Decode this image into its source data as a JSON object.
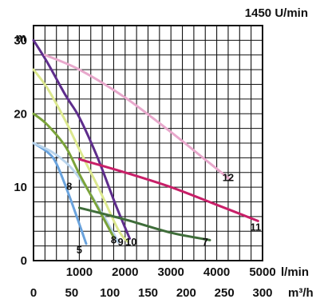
{
  "chart_data": {
    "type": "line",
    "speed_label": "1450 U/min",
    "y_unit": "m",
    "x_unit_top": "l/min",
    "x_unit_bottom": "m³/h",
    "ylim": [
      0,
      32
    ],
    "xlim_lmin": [
      0,
      5000
    ],
    "xlim_m3h": [
      0,
      300
    ],
    "y_ticks": [
      "0",
      "10",
      "20",
      "30"
    ],
    "x_ticks_top": [
      "1000",
      "2000",
      "3000",
      "4000",
      "5000"
    ],
    "x_ticks_bottom": [
      "0",
      "50",
      "100",
      "150",
      "200",
      "250",
      "300"
    ],
    "grid": true,
    "series": [
      {
        "name": "5",
        "color": "#6aa3dd",
        "points": [
          [
            0,
            16
          ],
          [
            300,
            14.8
          ],
          [
            500,
            13.2
          ],
          [
            800,
            8.5
          ],
          [
            1150,
            2.3
          ]
        ]
      },
      {
        "name": "9",
        "color": "#b9d4ec",
        "points": [
          [
            0,
            16
          ],
          [
            400,
            14.8
          ],
          [
            800,
            12.8
          ],
          [
            1200,
            9.5
          ],
          [
            1650,
            4.8
          ],
          [
            1850,
            2.5
          ]
        ]
      },
      {
        "name": "8",
        "color": "#7ba33a",
        "points": [
          [
            0,
            20
          ],
          [
            300,
            18.5
          ],
          [
            700,
            15.5
          ],
          [
            1000,
            11.8
          ],
          [
            1350,
            7.8
          ],
          [
            1750,
            3.2
          ]
        ]
      },
      {
        "name": "10",
        "color": "#dce88e",
        "points": [
          [
            0,
            26
          ],
          [
            300,
            23.5
          ],
          [
            700,
            19
          ],
          [
            1050,
            14.5
          ],
          [
            1450,
            9.5
          ],
          [
            1850,
            4.2
          ],
          [
            2050,
            2.6
          ]
        ]
      },
      {
        "name": "",
        "color": "#5e2d8c",
        "points": [
          [
            0,
            30
          ],
          [
            300,
            27
          ],
          [
            700,
            22.5
          ],
          [
            1000,
            19.5
          ],
          [
            1400,
            14
          ],
          [
            1800,
            7.5
          ],
          [
            2100,
            3
          ]
        ]
      },
      {
        "name": "12",
        "color": "#e8a8cc",
        "points": [
          [
            250,
            28
          ],
          [
            1000,
            26
          ],
          [
            2000,
            22.2
          ],
          [
            3000,
            17.5
          ],
          [
            3700,
            14
          ],
          [
            4300,
            11
          ]
        ]
      },
      {
        "name": "11",
        "color": "#c81f68",
        "points": [
          [
            1000,
            13.8
          ],
          [
            2000,
            12
          ],
          [
            3000,
            10
          ],
          [
            4000,
            7.6
          ],
          [
            4900,
            5.4
          ]
        ]
      },
      {
        "name": "7",
        "color": "#3f6d3a",
        "points": [
          [
            1000,
            7.2
          ],
          [
            2000,
            5.6
          ],
          [
            3000,
            3.8
          ],
          [
            3850,
            2.8
          ]
        ]
      }
    ],
    "labels": [
      {
        "text": "5",
        "x": 1000,
        "y": 1.5
      },
      {
        "text": "8",
        "x": 780,
        "y": 10.2
      },
      {
        "text": "8",
        "x": 1750,
        "y": 2.9
      },
      {
        "text": "9",
        "x": 1900,
        "y": 2.6
      },
      {
        "text": "10",
        "x": 2130,
        "y": 2.6
      },
      {
        "text": "7",
        "x": 3750,
        "y": 2.6
      },
      {
        "text": "12",
        "x": 4250,
        "y": 11.4
      },
      {
        "text": "11",
        "x": 4850,
        "y": 4.6
      }
    ]
  }
}
